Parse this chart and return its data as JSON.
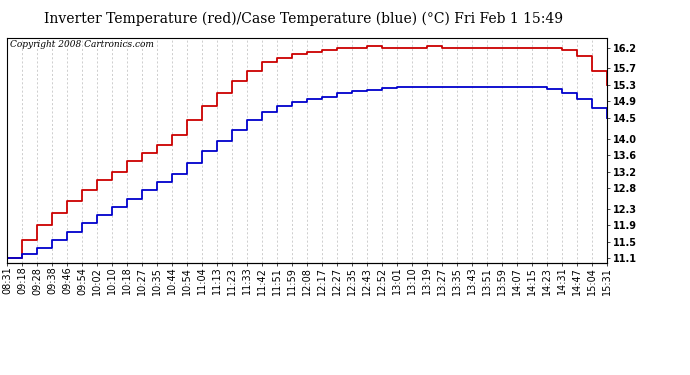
{
  "title": "Inverter Temperature (red)/Case Temperature (blue) (°C) Fri Feb 1 15:49",
  "copyright": "Copyright 2008 Cartronics.com",
  "ylabel_right_ticks": [
    11.1,
    11.5,
    11.9,
    12.3,
    12.8,
    13.2,
    13.6,
    14.0,
    14.5,
    14.9,
    15.3,
    15.7,
    16.2
  ],
  "ylim": [
    11.0,
    16.45
  ],
  "background_color": "#ffffff",
  "grid_color": "#bbbbbb",
  "x_labels": [
    "08:31",
    "09:18",
    "09:28",
    "09:38",
    "09:46",
    "09:54",
    "10:02",
    "10:10",
    "10:18",
    "10:27",
    "10:35",
    "10:44",
    "10:54",
    "11:04",
    "11:13",
    "11:23",
    "11:33",
    "11:42",
    "11:51",
    "11:59",
    "12:08",
    "12:17",
    "12:27",
    "12:35",
    "12:43",
    "12:52",
    "13:01",
    "13:10",
    "13:19",
    "13:27",
    "13:35",
    "13:43",
    "13:51",
    "13:59",
    "14:07",
    "14:15",
    "14:23",
    "14:31",
    "14:47",
    "15:04",
    "15:31"
  ],
  "red_data": [
    11.1,
    11.55,
    11.9,
    12.2,
    12.5,
    12.75,
    13.0,
    13.2,
    13.45,
    13.65,
    13.85,
    14.1,
    14.45,
    14.8,
    15.1,
    15.4,
    15.65,
    15.85,
    15.95,
    16.05,
    16.1,
    16.15,
    16.2,
    16.2,
    16.25,
    16.2,
    16.2,
    16.2,
    16.25,
    16.2,
    16.2,
    16.2,
    16.2,
    16.2,
    16.2,
    16.2,
    16.2,
    16.15,
    16.0,
    15.65,
    15.3
  ],
  "blue_data": [
    11.1,
    11.2,
    11.35,
    11.55,
    11.75,
    11.95,
    12.15,
    12.35,
    12.55,
    12.75,
    12.95,
    13.15,
    13.4,
    13.7,
    13.95,
    14.2,
    14.45,
    14.65,
    14.78,
    14.88,
    14.95,
    15.02,
    15.1,
    15.15,
    15.18,
    15.22,
    15.25,
    15.25,
    15.25,
    15.25,
    15.25,
    15.25,
    15.25,
    15.25,
    15.25,
    15.25,
    15.2,
    15.1,
    14.95,
    14.75,
    14.5
  ],
  "red_color": "#cc0000",
  "blue_color": "#0000cc",
  "title_fontsize": 10,
  "tick_fontsize": 7,
  "copyright_fontsize": 6.5
}
